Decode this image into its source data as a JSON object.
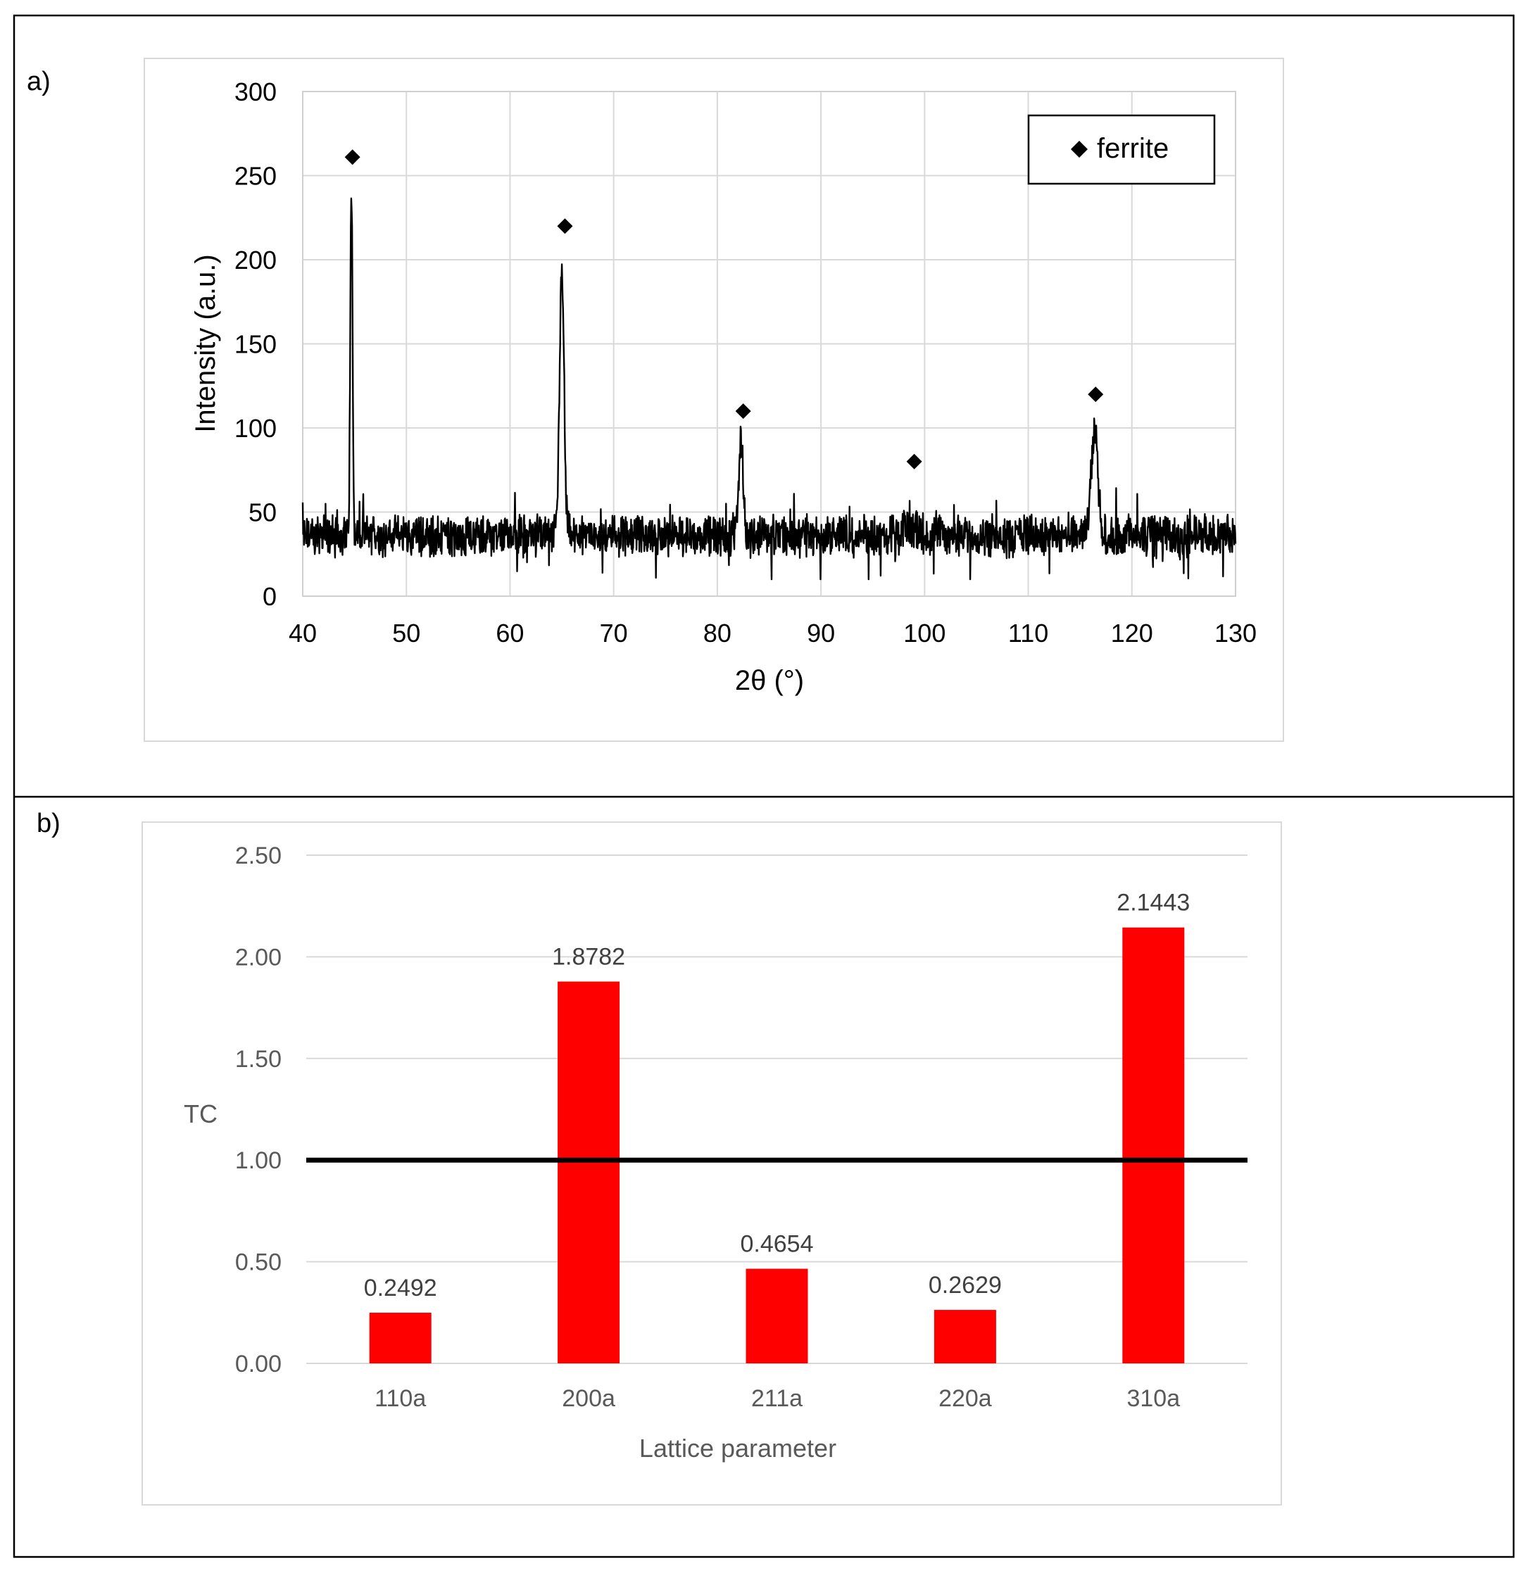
{
  "panels": {
    "a": {
      "label": "a)"
    },
    "b": {
      "label": "b)"
    }
  },
  "chart_data": [
    {
      "type": "line",
      "panel": "a)",
      "title": "",
      "xlabel": "2θ (°)",
      "ylabel": "Intensity (a.u.)",
      "xlim": [
        40,
        130
      ],
      "ylim": [
        0,
        300
      ],
      "xticks": [
        40,
        50,
        60,
        70,
        80,
        90,
        100,
        110,
        120,
        130
      ],
      "yticks": [
        0,
        50,
        100,
        150,
        200,
        250,
        300
      ],
      "grid": true,
      "legend": {
        "position": "top-right",
        "entries": [
          {
            "marker": "diamond",
            "label": "ferrite"
          }
        ]
      },
      "series_color": "#000000",
      "baseline": 36,
      "peaks": [
        {
          "x": 44.7,
          "y": 238
        },
        {
          "x": 65.0,
          "y": 195
        },
        {
          "x": 82.3,
          "y": 90
        },
        {
          "x": 99.0,
          "y": 41
        },
        {
          "x": 116.4,
          "y": 98
        }
      ],
      "markers": {
        "symbol": "diamond",
        "name": "ferrite",
        "points": [
          {
            "x": 44.8,
            "y": 261
          },
          {
            "x": 65.3,
            "y": 220
          },
          {
            "x": 82.5,
            "y": 110
          },
          {
            "x": 99.0,
            "y": 80
          },
          {
            "x": 116.5,
            "y": 120
          }
        ]
      }
    },
    {
      "type": "bar",
      "panel": "b)",
      "title": "",
      "xlabel": "Lattice parameter",
      "ylabel": "TC",
      "categories": [
        "110a",
        "200a",
        "211a",
        "220a",
        "310a"
      ],
      "values": [
        0.2492,
        1.8782,
        0.4654,
        0.2629,
        2.1443
      ],
      "data_labels": [
        "0.2492",
        "1.8782",
        "0.4654",
        "0.2629",
        "2.1443"
      ],
      "ylim": [
        0,
        2.5
      ],
      "yticks": [
        "0.00",
        "0.50",
        "1.00",
        "1.50",
        "2.00",
        "2.50"
      ],
      "grid": true,
      "bar_color": "#ff0000",
      "reference_line": {
        "y": 1.0,
        "color": "#000000"
      }
    }
  ]
}
